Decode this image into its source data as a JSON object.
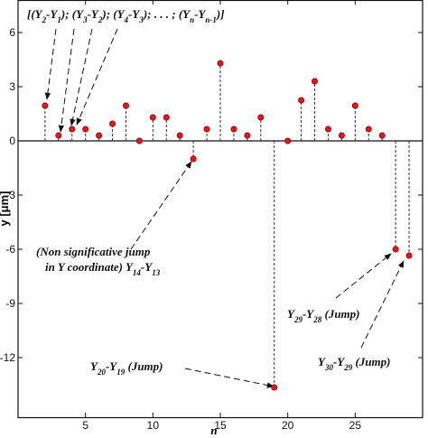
{
  "chart_data": {
    "type": "stem",
    "x_label": "n",
    "y_label": "y [μm]",
    "x": [
      2,
      3,
      4,
      5,
      6,
      7,
      8,
      9,
      10,
      11,
      12,
      13,
      14,
      15,
      16,
      17,
      18,
      19,
      20,
      21,
      22,
      23,
      24,
      25,
      26,
      27,
      28,
      29
    ],
    "values": [
      1.95,
      0.3,
      0.65,
      0.65,
      0.3,
      0.95,
      1.95,
      0,
      1.3,
      1.3,
      0.3,
      -1.0,
      0.65,
      4.3,
      0.65,
      0.3,
      1.3,
      -13.65,
      0,
      2.25,
      3.3,
      0.65,
      0.3,
      1.95,
      0.65,
      0.3,
      -6.0,
      -6.35
    ],
    "color": "#e8141b",
    "xlim": [
      0,
      30
    ],
    "ylim": [
      -15.3,
      7.8
    ],
    "xticks": [
      5,
      10,
      15,
      20,
      25
    ],
    "yticks": [
      -12,
      -9,
      -6,
      -3,
      0,
      3,
      6
    ],
    "annotations": [
      [
        "[(Y",
        "2",
        "-Y",
        "1",
        "); (Y",
        "3",
        "-Y",
        "2",
        "); (Y",
        "4",
        "-Y",
        "3",
        "); . . . ; (Y",
        "n",
        "-Y",
        "n-1",
        ")]"
      ],
      [
        "(Non significative jump"
      ],
      [
        "in Y coordinate)  Y",
        "14",
        "-Y",
        "13"
      ],
      [
        "Y",
        "20",
        "-Y",
        "19",
        " (Jump)"
      ],
      [
        "Y",
        "29",
        "-Y",
        "28",
        " (Jump)"
      ],
      [
        "Y",
        "30",
        "-Y",
        "29",
        " (Jump)"
      ]
    ]
  }
}
